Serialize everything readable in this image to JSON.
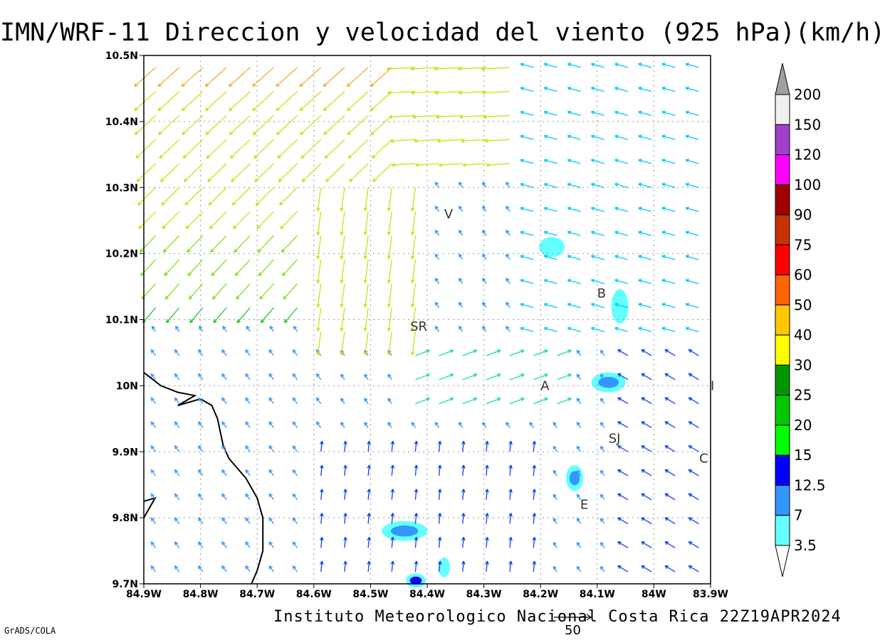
{
  "title": "IMN/WRF-11 Direccion y velocidad del viento (925 hPa)(km/h)",
  "credit": "Instituto Meteorologico Nacional Costa Rica 22Z19APR2024",
  "software": "GrADS/COLA",
  "reference_vector": {
    "value": "50"
  },
  "axes": {
    "lon_labels": [
      "84.9W",
      "84.8W",
      "84.7W",
      "84.6W",
      "84.5W",
      "84.4W",
      "84.3W",
      "84.2W",
      "84.1W",
      "84W",
      "83.9W"
    ],
    "lat_labels": [
      "10.5N",
      "10.4N",
      "10.3N",
      "10.2N",
      "10.1N",
      "10N",
      "9.9N",
      "9.8N",
      "9.7N"
    ],
    "lon_range": [
      -84.9,
      -83.9
    ],
    "lat_range": [
      9.7,
      10.5
    ],
    "grid": "dotted"
  },
  "colorbar": {
    "labels": [
      "200",
      "150",
      "120",
      "100",
      "90",
      "75",
      "60",
      "50",
      "40",
      "30",
      "25",
      "20",
      "15",
      "12.5",
      "7",
      "3.5"
    ],
    "colors": [
      "#f0f0f0",
      "#a040c8",
      "#ff00ff",
      "#a00000",
      "#c83200",
      "#ff0000",
      "#ff6400",
      "#ffc800",
      "#ffff00",
      "#009600",
      "#00c800",
      "#00ff00",
      "#0000ff",
      "#3296ff",
      "#64ffff"
    ],
    "top_triangle": "#a0a0a0"
  },
  "stations": [
    {
      "code": "V",
      "lon": -84.37,
      "lat": 10.26
    },
    {
      "code": "SR",
      "lon": -84.43,
      "lat": 10.09
    },
    {
      "code": "B",
      "lon": -84.1,
      "lat": 10.14
    },
    {
      "code": "A",
      "lon": -84.2,
      "lat": 10.0
    },
    {
      "code": "SJ",
      "lon": -84.08,
      "lat": 9.92
    },
    {
      "code": "C",
      "lon": -83.92,
      "lat": 9.89
    },
    {
      "code": "E",
      "lon": -84.13,
      "lat": 9.82
    },
    {
      "code": "I",
      "lon": -83.9,
      "lat": 10.0
    }
  ],
  "speed_fill_areas": [
    {
      "lon": -84.18,
      "lat": 10.21,
      "level": "3.5"
    },
    {
      "lon": -84.06,
      "lat": 10.12,
      "level": "3.5"
    },
    {
      "lon": -84.08,
      "lat": 10.005,
      "level": "7"
    },
    {
      "lon": -84.14,
      "lat": 9.86,
      "level": "7"
    },
    {
      "lon": -84.44,
      "lat": 9.78,
      "level": "7"
    },
    {
      "lon": -84.37,
      "lat": 9.725,
      "level": "3.5"
    },
    {
      "lon": -84.42,
      "lat": 9.705,
      "level": "12.5"
    }
  ],
  "coastline": [
    [
      -84.9,
      10.02
    ],
    [
      -84.87,
      10.0
    ],
    [
      -84.84,
      9.99
    ],
    [
      -84.81,
      9.985
    ],
    [
      -84.84,
      9.97
    ],
    [
      -84.8,
      9.98
    ],
    [
      -84.78,
      9.97
    ],
    [
      -84.77,
      9.95
    ],
    [
      -84.76,
      9.91
    ],
    [
      -84.75,
      9.89
    ],
    [
      -84.72,
      9.86
    ],
    [
      -84.7,
      9.83
    ],
    [
      -84.69,
      9.8
    ],
    [
      -84.69,
      9.75
    ],
    [
      -84.7,
      9.72
    ],
    [
      -84.71,
      9.7
    ]
  ],
  "coastline_south": [
    [
      -84.9,
      9.8
    ],
    [
      -84.88,
      9.83
    ],
    [
      -84.9,
      9.825
    ]
  ]
}
